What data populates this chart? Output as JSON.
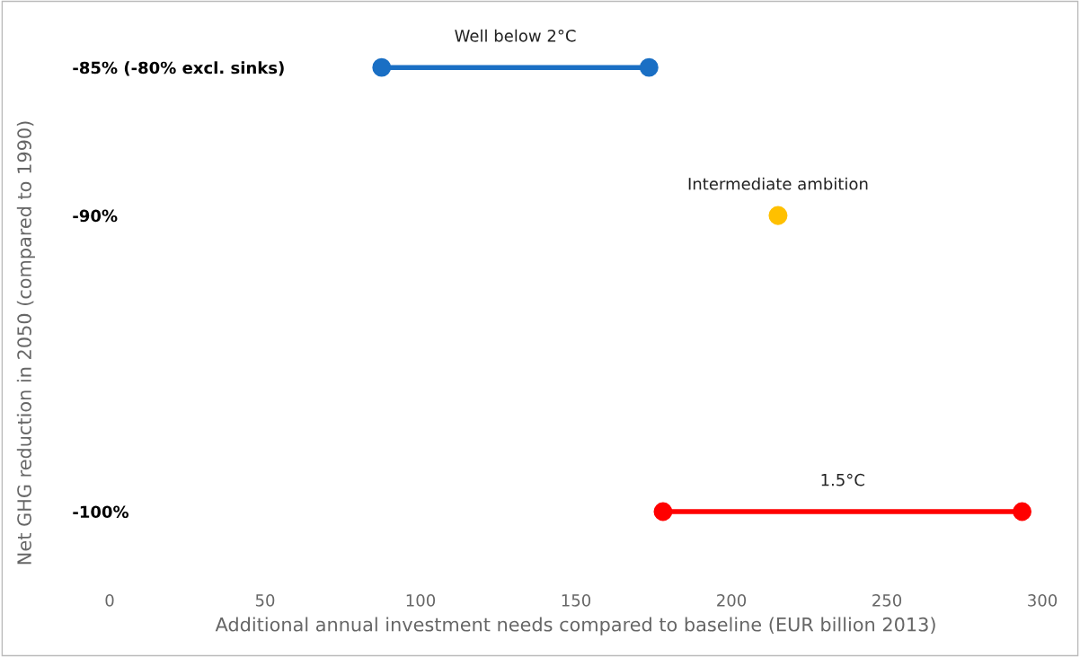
{
  "chart_data": {
    "type": "line",
    "xlabel": "Additional annual investment needs compared to baseline (EUR billion 2013)",
    "ylabel": "Net GHG reduction in 2050 (compared to 1990)",
    "series": [
      {
        "name": "Well below 2°C",
        "color": "#1a6fc4",
        "x": [
          87.5,
          173.5
        ],
        "values": [
          -85,
          -85
        ]
      },
      {
        "name": "Intermediate ambition",
        "color": "#ffc000",
        "x": [
          215
        ],
        "values": [
          -90
        ],
        "type": "scatter"
      },
      {
        "name": "1.5°C",
        "color": "#ff0000",
        "x": [
          178,
          293.5
        ],
        "values": [
          -100,
          -100
        ]
      }
    ],
    "xlim": [
      0,
      300
    ],
    "xticks": [
      0,
      50,
      100,
      150,
      200,
      250,
      300
    ],
    "ylim": [
      -100,
      -85
    ],
    "yticks": [
      {
        "value": -85,
        "label": "-85% (-80% excl. sinks)"
      },
      {
        "value": -90,
        "label": "-90%"
      },
      {
        "value": -100,
        "label": "-100%"
      }
    ],
    "marker": "circle",
    "line_style": "solid",
    "grid": false,
    "legend": false
  }
}
